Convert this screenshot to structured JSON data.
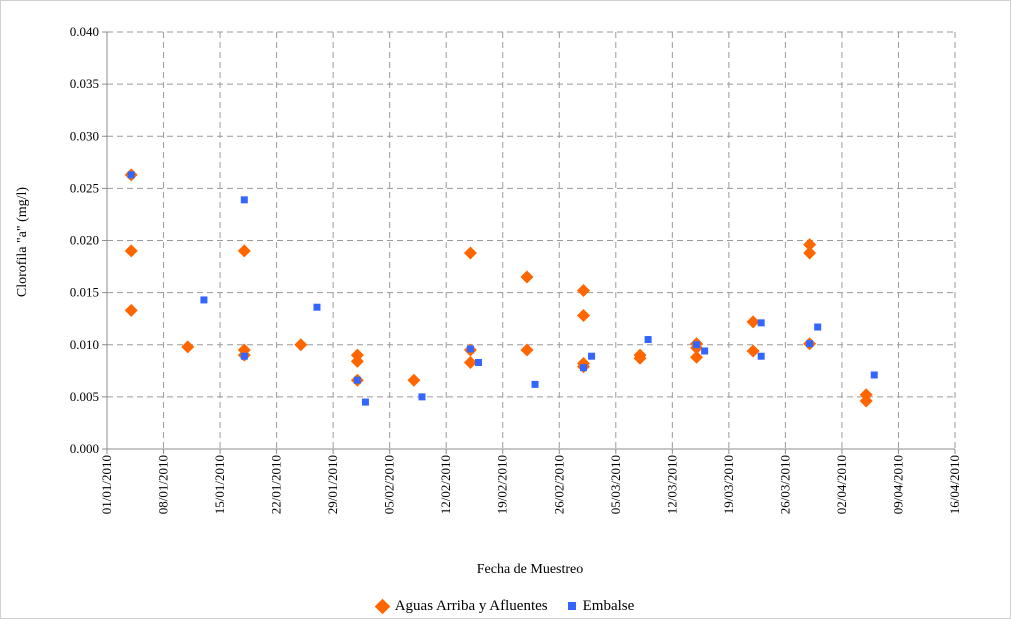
{
  "colors": {
    "series1": "#FF6600",
    "series2": "#3366FF",
    "grid": "#9A9A9A",
    "axis": "#8C8C8C",
    "frame": "#C8C8C8"
  },
  "chart_data": {
    "type": "scatter",
    "xlabel": "Fecha de Muestreo",
    "ylabel": "Clorofila \"a\" (mg/l)",
    "x_ticks": [
      "01/01/2010",
      "08/01/2010",
      "15/01/2010",
      "22/01/2010",
      "29/01/2010",
      "05/02/2010",
      "12/02/2010",
      "19/02/2010",
      "26/02/2010",
      "05/03/2010",
      "12/03/2010",
      "19/03/2010",
      "26/03/2010",
      "02/04/2010",
      "09/04/2010",
      "16/04/2010"
    ],
    "xlim": [
      "01/01/2010",
      "16/04/2010"
    ],
    "ylim": [
      0,
      0.04
    ],
    "y_ticks": [
      "0.000",
      "0.005",
      "0.010",
      "0.015",
      "0.020",
      "0.025",
      "0.030",
      "0.035",
      "0.040"
    ],
    "grid": "horizontal and vertical dashed",
    "legend_position": "bottom",
    "series": [
      {
        "name": "Aguas Arriba y Afluentes",
        "marker": "diamond",
        "points": [
          [
            "04/01/2010",
            0.0263
          ],
          [
            "04/01/2010",
            0.019
          ],
          [
            "04/01/2010",
            0.0133
          ],
          [
            "11/01/2010",
            0.0098
          ],
          [
            "18/01/2010",
            0.019
          ],
          [
            "18/01/2010",
            0.0095
          ],
          [
            "18/01/2010",
            0.009
          ],
          [
            "25/01/2010",
            0.01
          ],
          [
            "01/02/2010",
            0.009
          ],
          [
            "01/02/2010",
            0.0084
          ],
          [
            "01/02/2010",
            0.0066
          ],
          [
            "08/02/2010",
            0.0066
          ],
          [
            "15/02/2010",
            0.0188
          ],
          [
            "15/02/2010",
            0.0095
          ],
          [
            "15/02/2010",
            0.0083
          ],
          [
            "22/02/2010",
            0.0165
          ],
          [
            "22/02/2010",
            0.0095
          ],
          [
            "01/03/2010",
            0.0152
          ],
          [
            "01/03/2010",
            0.0128
          ],
          [
            "01/03/2010",
            0.0082
          ],
          [
            "01/03/2010",
            0.0079
          ],
          [
            "08/03/2010",
            0.009
          ],
          [
            "08/03/2010",
            0.0087
          ],
          [
            "15/03/2010",
            0.0101
          ],
          [
            "15/03/2010",
            0.0097
          ],
          [
            "15/03/2010",
            0.0088
          ],
          [
            "22/03/2010",
            0.0122
          ],
          [
            "22/03/2010",
            0.0094
          ],
          [
            "29/03/2010",
            0.0196
          ],
          [
            "29/03/2010",
            0.0188
          ],
          [
            "29/03/2010",
            0.0101
          ],
          [
            "05/04/2010",
            0.0052
          ],
          [
            "05/04/2010",
            0.0046
          ]
        ]
      },
      {
        "name": "Embalse",
        "marker": "square",
        "points": [
          [
            "04/01/2010",
            0.0263
          ],
          [
            "13/01/2010",
            0.0143
          ],
          [
            "18/01/2010",
            0.0239
          ],
          [
            "18/01/2010",
            0.0089
          ],
          [
            "27/01/2010",
            0.0136
          ],
          [
            "01/02/2010",
            0.0066
          ],
          [
            "02/02/2010",
            0.0045
          ],
          [
            "09/02/2010",
            0.005
          ],
          [
            "15/02/2010",
            0.0096
          ],
          [
            "16/02/2010",
            0.0083
          ],
          [
            "23/02/2010",
            0.0062
          ],
          [
            "01/03/2010",
            0.0078
          ],
          [
            "02/03/2010",
            0.0089
          ],
          [
            "09/03/2010",
            0.0105
          ],
          [
            "15/03/2010",
            0.01
          ],
          [
            "16/03/2010",
            0.0094
          ],
          [
            "23/03/2010",
            0.0121
          ],
          [
            "23/03/2010",
            0.0089
          ],
          [
            "29/03/2010",
            0.0101
          ],
          [
            "30/03/2010",
            0.0117
          ],
          [
            "06/04/2010",
            0.0071
          ]
        ]
      }
    ]
  }
}
